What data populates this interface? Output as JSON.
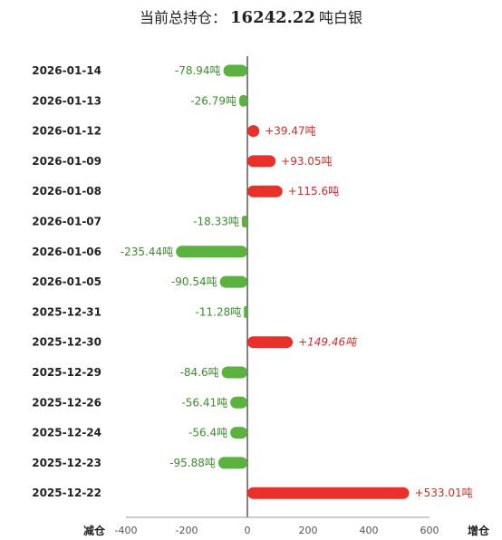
{
  "header": {
    "label": "当前总持仓：",
    "total": "16242.22",
    "unit": "吨白银"
  },
  "axis": {
    "left_end_label": "减仓",
    "right_end_label": "增仓"
  },
  "colors": {
    "positive": "#e8312b",
    "negative": "#5bb23f",
    "positive_text": "#d42a2a",
    "negative_text": "#3c8a2e"
  },
  "chart_data": {
    "type": "bar",
    "orientation": "horizontal",
    "categories": [
      "2026-01-14",
      "2026-01-13",
      "2026-01-12",
      "2026-01-09",
      "2026-01-08",
      "2026-01-07",
      "2026-01-06",
      "2026-01-05",
      "2025-12-31",
      "2025-12-30",
      "2025-12-29",
      "2025-12-26",
      "2025-12-24",
      "2025-12-23",
      "2025-12-22"
    ],
    "values": [
      -78.94,
      -26.79,
      39.47,
      93.05,
      115.6,
      -18.33,
      -235.44,
      -90.54,
      -11.28,
      149.46,
      -84.6,
      -56.41,
      -56.4,
      -95.88,
      533.01
    ],
    "value_labels": [
      "-78.94吨",
      "-26.79吨",
      "+39.47吨",
      "+93.05吨",
      "+115.6吨",
      "-18.33吨",
      "-235.44吨",
      "-90.54吨",
      "-11.28吨",
      "+149.46吨",
      "-84.6吨",
      "-56.41吨",
      "-56.4吨",
      "-95.88吨",
      "+533.01吨"
    ],
    "xlim": [
      -400,
      600
    ],
    "xticks": [
      -400,
      -200,
      0,
      200,
      400,
      600
    ],
    "tick_labels": [
      "-400",
      "-200",
      "0",
      "200",
      "400",
      "600"
    ],
    "title": "",
    "xlabel": "",
    "ylabel": "",
    "grid": false
  }
}
